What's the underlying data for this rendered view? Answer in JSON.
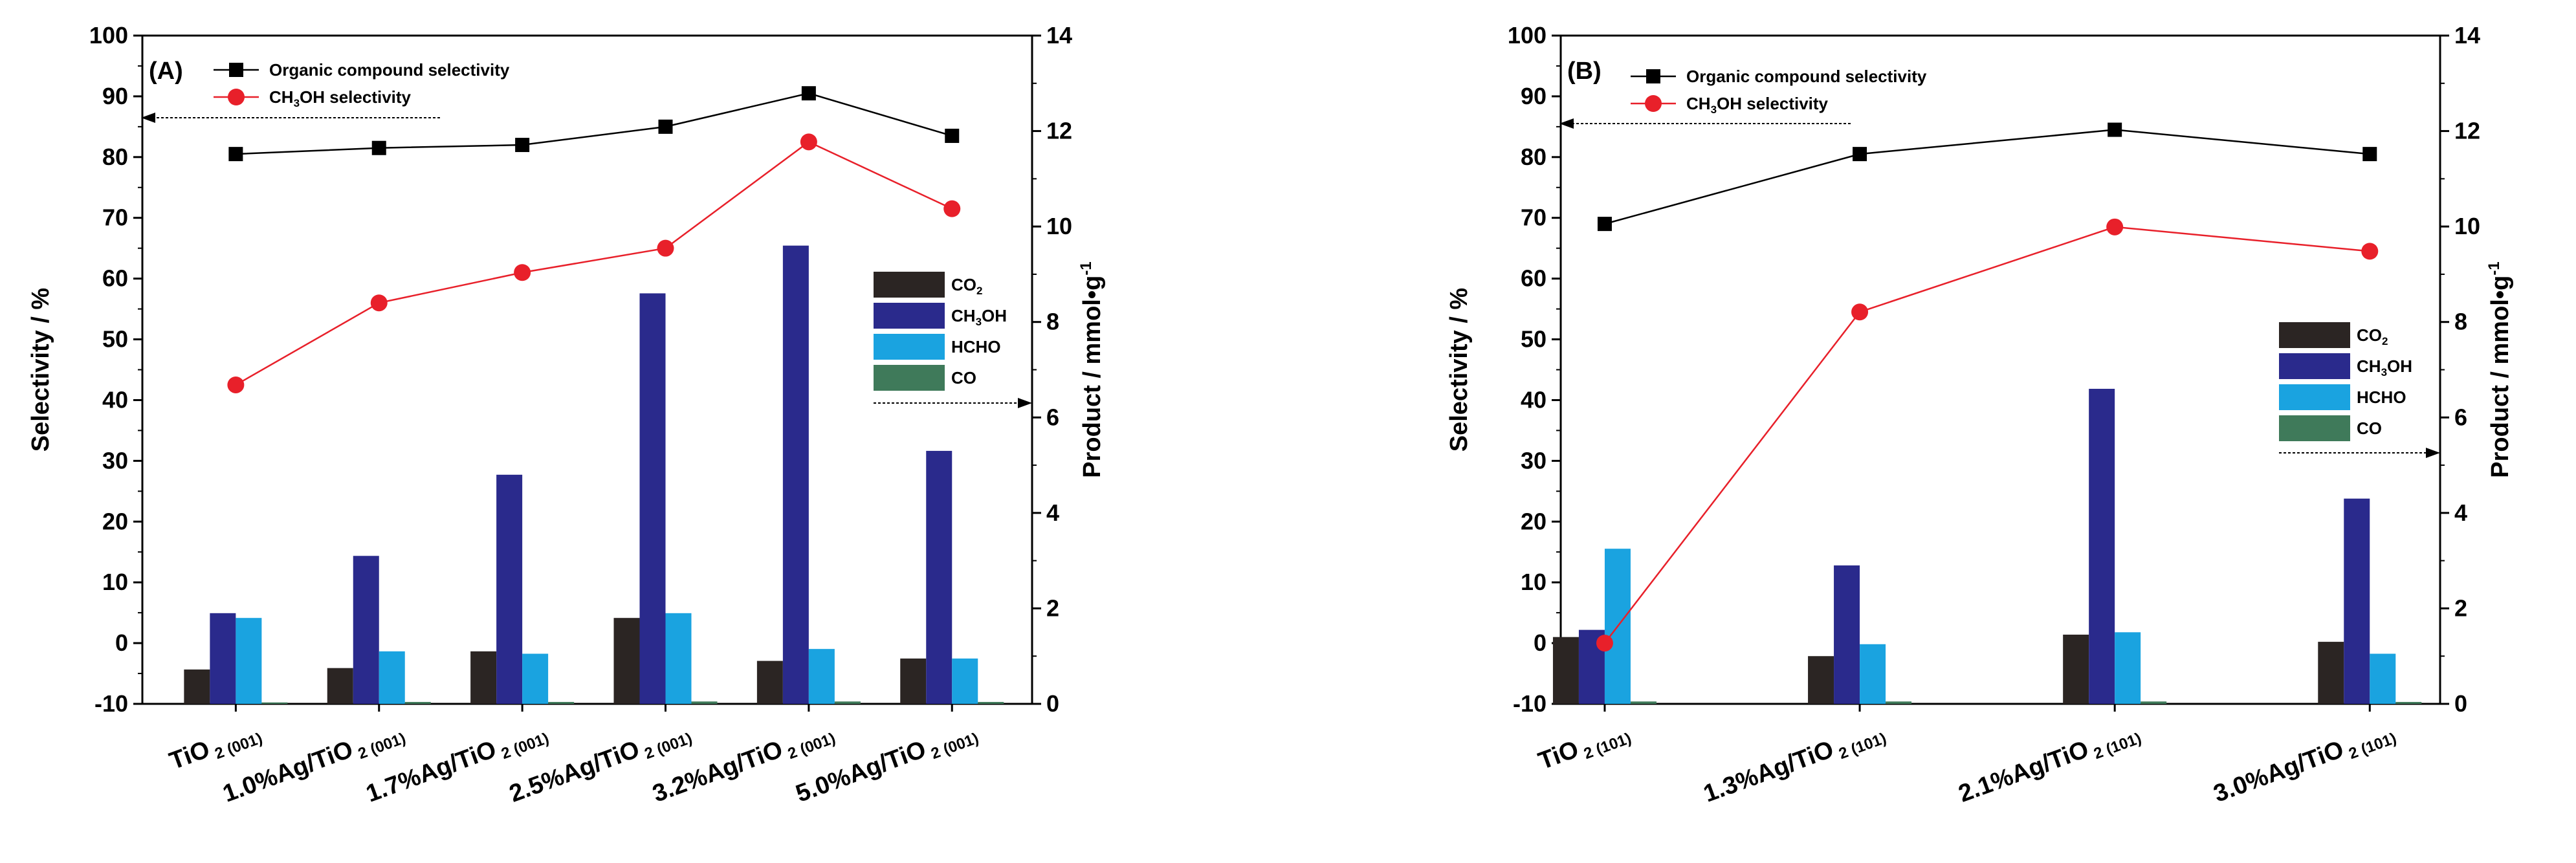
{
  "chart_data": [
    {
      "type": "bar",
      "panel_label": "(A)",
      "categories": [
        {
          "main": "TiO",
          "sub": "2",
          "facet": "(001)"
        },
        {
          "main": "1.0%Ag/TiO",
          "sub": "2",
          "facet": "(001)"
        },
        {
          "main": "1.7%Ag/TiO",
          "sub": "2",
          "facet": "(001)"
        },
        {
          "main": "2.5%Ag/TiO",
          "sub": "2",
          "facet": "(001)"
        },
        {
          "main": "3.2%Ag/TiO",
          "sub": "2",
          "facet": "(001)"
        },
        {
          "main": "5.0%Ag/TiO",
          "sub": "2",
          "facet": "(001)"
        }
      ],
      "ylabel_left": "Selectivity / %",
      "ylabel_right": {
        "text": "Product / mmol•g",
        "sup": "-1"
      },
      "ylim_left": [
        -10,
        100
      ],
      "yticks_left": [
        -10,
        0,
        10,
        20,
        30,
        40,
        50,
        60,
        70,
        80,
        90,
        100
      ],
      "ylim_right": [
        0,
        14
      ],
      "yticks_right": [
        0,
        2,
        4,
        6,
        8,
        10,
        12,
        14
      ],
      "bar_series": [
        {
          "key": "co2",
          "name": "CO",
          "sub": "2",
          "color": "#2b2523",
          "values": [
            0.72,
            0.75,
            1.1,
            1.8,
            0.9,
            0.95
          ]
        },
        {
          "key": "ch3oh",
          "name": "CH",
          "sub": "3",
          "tail": "OH",
          "color": "#2a2a8c",
          "values": [
            1.9,
            3.1,
            4.8,
            8.6,
            9.6,
            5.3
          ]
        },
        {
          "key": "hcho",
          "name": "HCHO",
          "color": "#1aa3e0",
          "values": [
            1.8,
            1.1,
            1.05,
            1.9,
            1.15,
            0.95
          ]
        },
        {
          "key": "co",
          "name": "CO",
          "color": "#3f7a5a",
          "values": [
            0.03,
            0.04,
            0.04,
            0.05,
            0.05,
            0.04
          ]
        }
      ],
      "line_series": [
        {
          "name": "Organic compound selectivity",
          "color": "#000000",
          "marker": "square",
          "values": [
            80.5,
            81.5,
            82,
            85,
            90.5,
            83.5
          ]
        },
        {
          "name": "CH3OH selectivity",
          "label": {
            "main": "CH",
            "sub": "3",
            "tail": "OH selectivity"
          },
          "color": "#e8202a",
          "marker": "circle",
          "values": [
            42.5,
            56,
            61,
            65,
            82.5,
            71.5
          ]
        }
      ]
    },
    {
      "type": "bar",
      "panel_label": "(B)",
      "categories": [
        {
          "main": "TiO",
          "sub": "2",
          "facet": "(101)"
        },
        {
          "main": "1.3%Ag/TiO",
          "sub": "2",
          "facet": "(101)"
        },
        {
          "main": "2.1%Ag/TiO",
          "sub": "2",
          "facet": "(101)"
        },
        {
          "main": "3.0%Ag/TiO",
          "sub": "2",
          "facet": "(101)"
        }
      ],
      "ylabel_left": "Selectivity / %",
      "ylabel_right": {
        "text": "Product / mmol•g",
        "sup": "-1"
      },
      "ylim_left": [
        -10,
        100
      ],
      "yticks_left": [
        -10,
        0,
        10,
        20,
        30,
        40,
        50,
        60,
        70,
        80,
        90,
        100
      ],
      "ylim_right": [
        0,
        14
      ],
      "yticks_right": [
        0,
        2,
        4,
        6,
        8,
        10,
        12,
        14
      ],
      "bar_series": [
        {
          "key": "co2",
          "name": "CO",
          "sub": "2",
          "color": "#2b2523",
          "values": [
            1.4,
            1.0,
            1.45,
            1.3
          ]
        },
        {
          "key": "ch3oh",
          "name": "CH",
          "sub": "3",
          "tail": "OH",
          "color": "#2a2a8c",
          "values": [
            1.55,
            2.9,
            6.6,
            4.3
          ]
        },
        {
          "key": "hcho",
          "name": "HCHO",
          "color": "#1aa3e0",
          "values": [
            3.25,
            1.25,
            1.5,
            1.05
          ]
        },
        {
          "key": "co",
          "name": "CO",
          "color": "#3f7a5a",
          "values": [
            0.05,
            0.05,
            0.05,
            0.04
          ]
        }
      ],
      "line_series": [
        {
          "name": "Organic compound selectivity",
          "color": "#000000",
          "marker": "square",
          "values": [
            69,
            80.5,
            84.5,
            80.5
          ]
        },
        {
          "name": "CH3OH selectivity",
          "label": {
            "main": "CH",
            "sub": "3",
            "tail": "OH selectivity"
          },
          "color": "#e8202a",
          "marker": "circle",
          "values": [
            0,
            54.5,
            68.5,
            64.5
          ]
        }
      ]
    }
  ]
}
